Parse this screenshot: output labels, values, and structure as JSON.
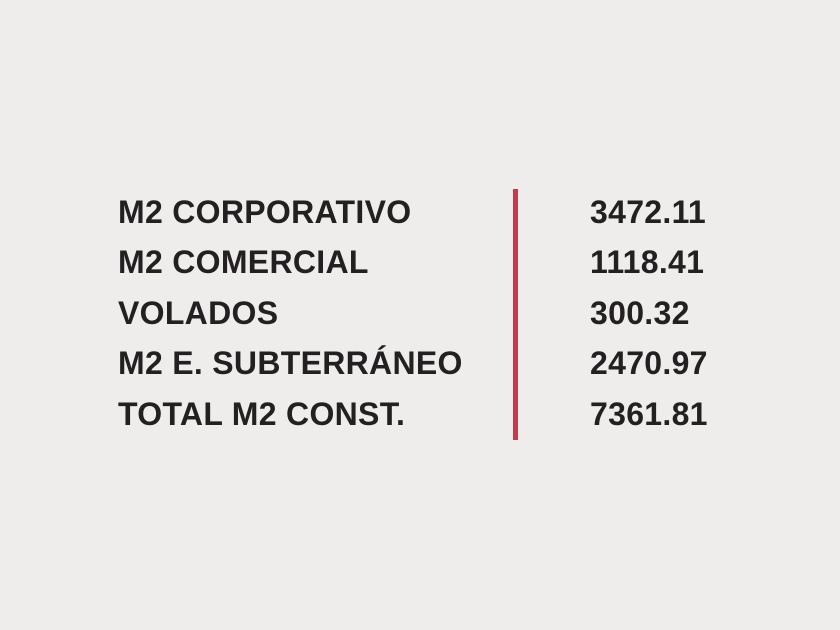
{
  "page": {
    "background_color": "#eeedeb",
    "text_color": "#242021",
    "divider_color": "#c43b4b"
  },
  "table": {
    "rows": [
      {
        "label": "M2 CORPORATIVO",
        "value": "3472.11"
      },
      {
        "label": "M2 COMERCIAL",
        "value": "1118.41"
      },
      {
        "label": "VOLADOS",
        "value": "300.32"
      },
      {
        "label": "M2 E. SUBTERRÁNEO",
        "value": "2470.97"
      },
      {
        "label": "TOTAL M2 CONST.",
        "value": "7361.81"
      }
    ]
  },
  "chart_data": {
    "type": "table",
    "title": "",
    "categories": [
      "M2 CORPORATIVO",
      "M2 COMERCIAL",
      "VOLADOS",
      "M2 E. SUBTERRÁNEO",
      "TOTAL M2 CONST."
    ],
    "values": [
      3472.11,
      1118.41,
      300.32,
      2470.97,
      7361.81
    ]
  }
}
